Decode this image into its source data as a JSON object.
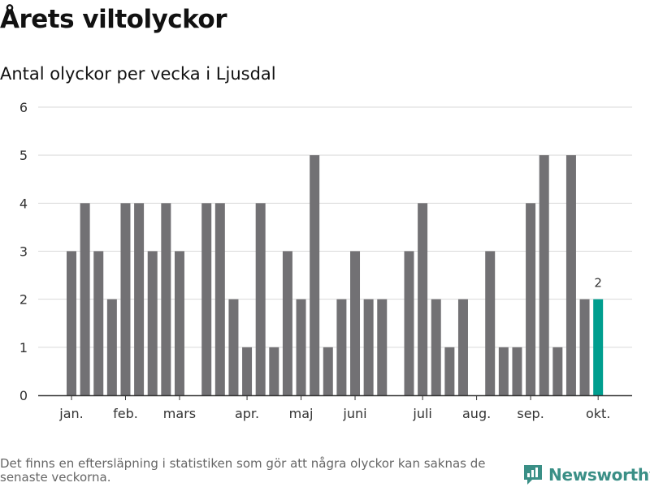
{
  "title": "Årets viltolyckor",
  "subtitle": "Antal olyckor per vecka i Ljusdal",
  "footnote": "Det finns en eftersläpning i statistiken som gör att några olyckor kan saknas de senaste veckorna.",
  "brand": {
    "name": "Newsworthy"
  },
  "colors": {
    "bar": "#727174",
    "highlight": "#009e8f",
    "grid": "#d9d9d9",
    "axis": "#333333",
    "text": "#333333"
  },
  "chart_data": {
    "type": "bar",
    "x_unit": "week",
    "weeks": [
      1,
      2,
      3,
      4,
      5,
      6,
      7,
      8,
      9,
      10,
      11,
      12,
      13,
      14,
      15,
      16,
      17,
      18,
      19,
      20,
      21,
      22,
      23,
      24,
      25,
      26,
      27,
      28,
      29,
      30,
      31,
      32,
      33,
      34,
      35,
      36,
      37,
      38,
      39,
      40
    ],
    "values": [
      3,
      4,
      3,
      2,
      4,
      4,
      3,
      4,
      3,
      0,
      4,
      4,
      2,
      1,
      4,
      1,
      3,
      2,
      5,
      1,
      2,
      3,
      2,
      2,
      0,
      3,
      4,
      2,
      1,
      2,
      0,
      3,
      1,
      1,
      4,
      5,
      1,
      5,
      2,
      2
    ],
    "highlight_index": 39,
    "data_labels": [
      {
        "week": 40,
        "text": "2"
      }
    ],
    "x_tick_labels": [
      {
        "week": 1,
        "label": "jan."
      },
      {
        "week": 5,
        "label": "feb."
      },
      {
        "week": 9,
        "label": "mars"
      },
      {
        "week": 14,
        "label": "apr."
      },
      {
        "week": 18,
        "label": "maj"
      },
      {
        "week": 22,
        "label": "juni"
      },
      {
        "week": 27,
        "label": "juli"
      },
      {
        "week": 31,
        "label": "aug."
      },
      {
        "week": 35,
        "label": "sep."
      },
      {
        "week": 40,
        "label": "okt."
      }
    ],
    "y_ticks": [
      0,
      1,
      2,
      3,
      4,
      5,
      6
    ],
    "ylim": [
      0,
      6
    ],
    "grid": true
  }
}
